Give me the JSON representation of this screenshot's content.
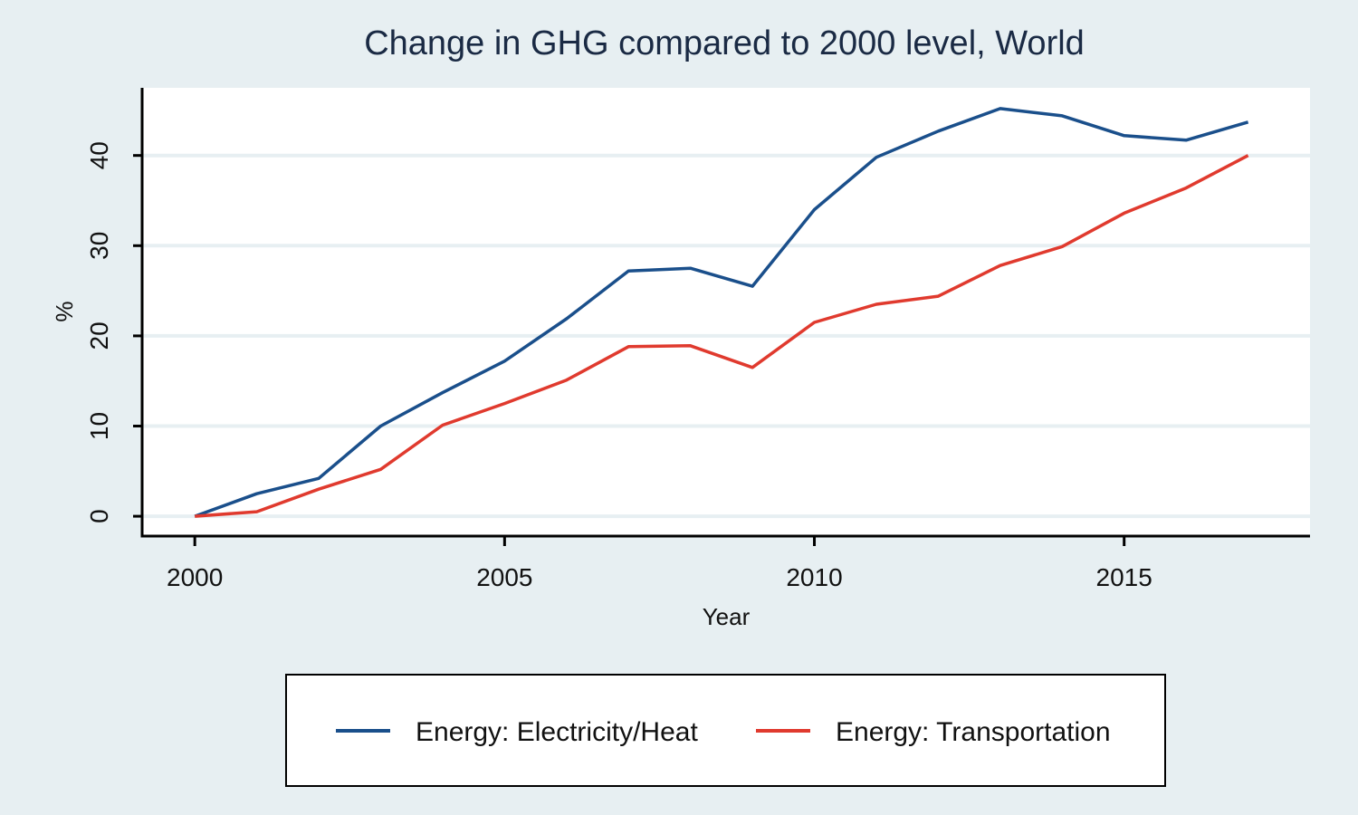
{
  "chart_data": {
    "type": "line",
    "title": "Change in GHG compared to 2000 level, World",
    "xlabel": "Year",
    "ylabel": "%",
    "xlim": [
      1999.15,
      2018.0
    ],
    "ylim": [
      -2.2,
      47.5
    ],
    "x_ticks": [
      2000,
      2005,
      2010,
      2015
    ],
    "y_ticks": [
      0,
      10,
      20,
      30,
      40
    ],
    "x_tick_labels": [
      "2000",
      "2005",
      "2010",
      "2015"
    ],
    "y_tick_labels": [
      "0",
      "10",
      "20",
      "30",
      "40"
    ],
    "grid": "horizontal",
    "legend_position": "bottom",
    "x": [
      2000,
      2001,
      2002,
      2003,
      2004,
      2005,
      2006,
      2007,
      2008,
      2009,
      2010,
      2011,
      2012,
      2013,
      2014,
      2015,
      2016,
      2017
    ],
    "series": [
      {
        "name": "Energy: Electricity/Heat",
        "color": "#1a4f8b",
        "values": [
          0,
          2.5,
          4.2,
          10.0,
          13.7,
          17.2,
          21.9,
          27.2,
          27.5,
          25.5,
          34.0,
          39.8,
          42.7,
          45.2,
          44.4,
          42.2,
          41.7,
          43.7
        ]
      },
      {
        "name": "Energy: Transportation",
        "color": "#e03a2e",
        "values": [
          0,
          0.5,
          3.0,
          5.2,
          10.1,
          12.5,
          15.1,
          18.8,
          18.9,
          16.5,
          21.5,
          23.5,
          24.4,
          27.8,
          29.9,
          33.6,
          36.4,
          40.0
        ]
      }
    ]
  }
}
